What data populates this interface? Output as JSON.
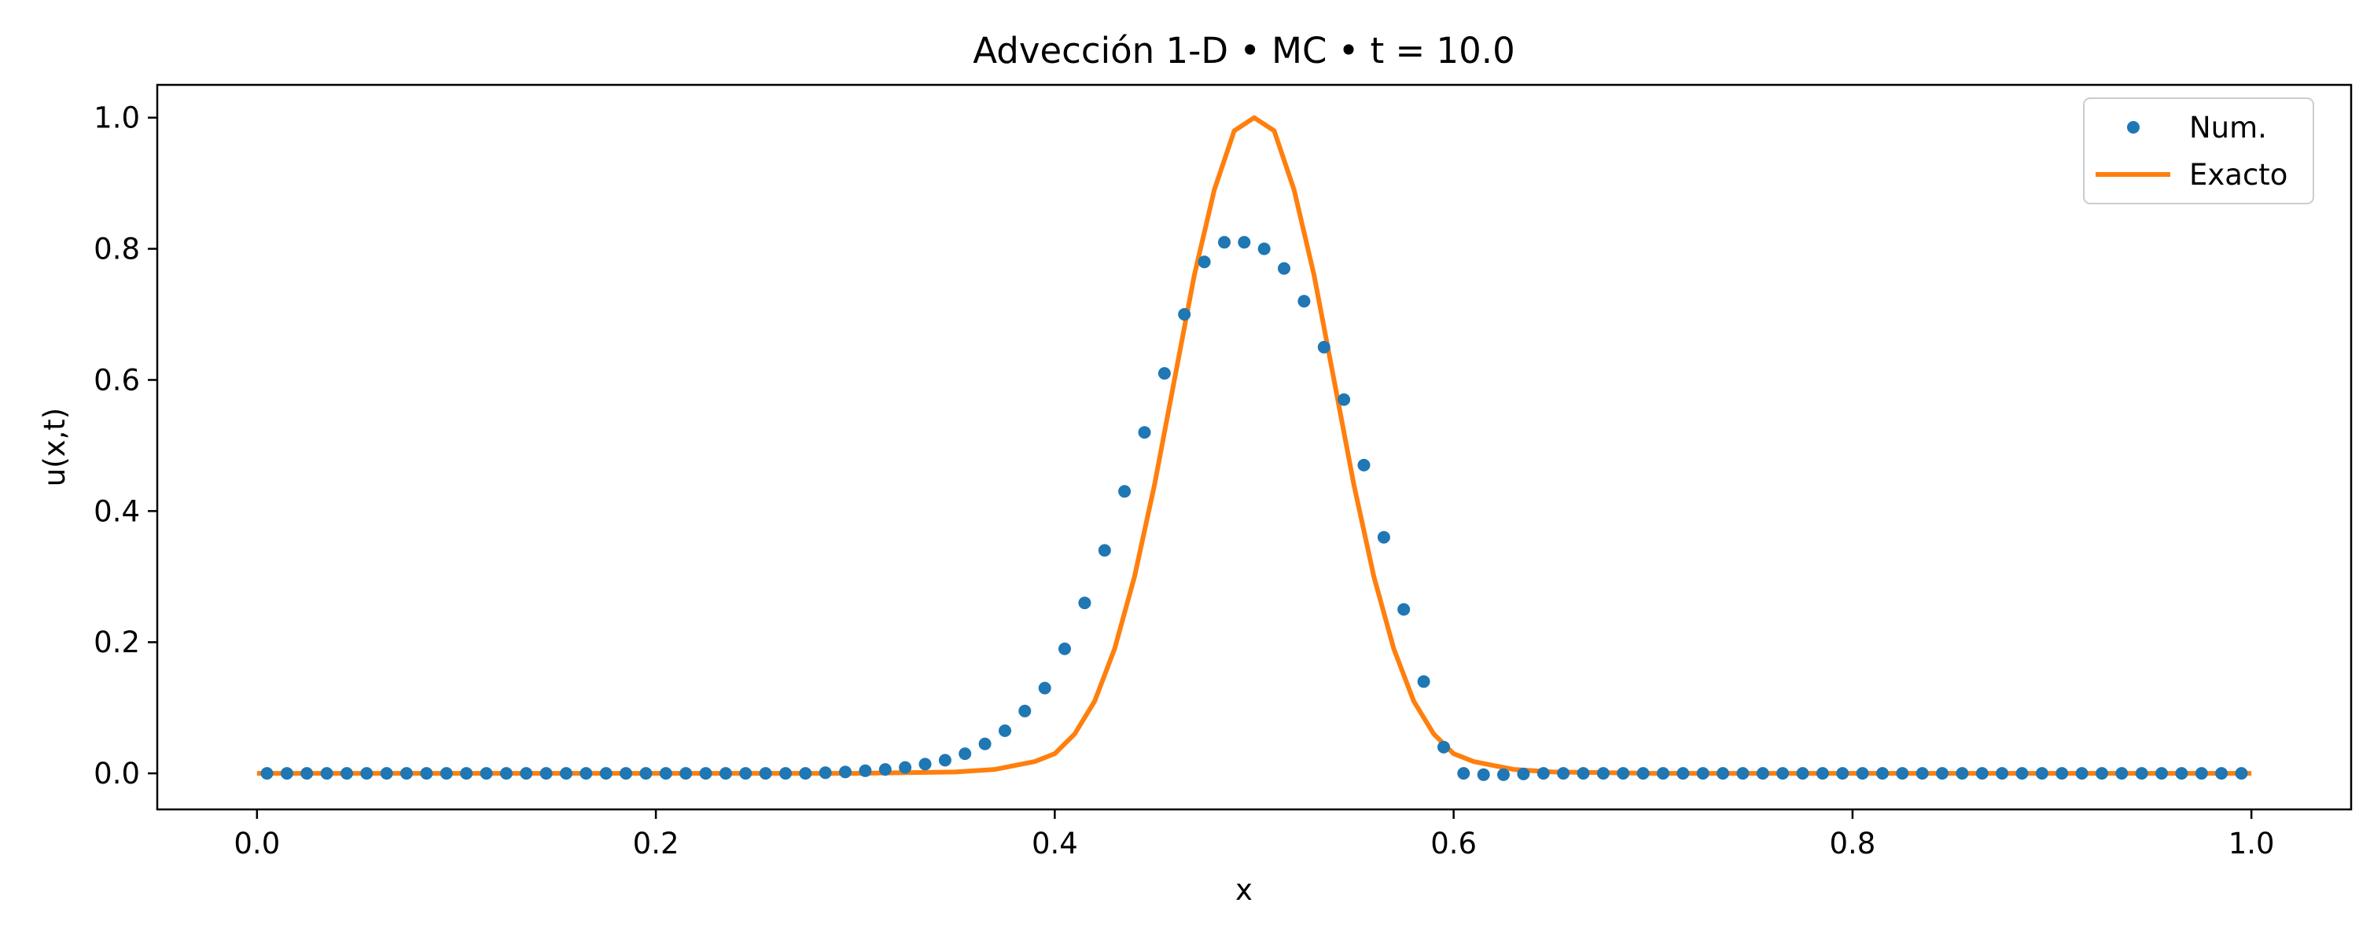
{
  "chart_data": {
    "type": "line",
    "title": "Advección 1-D • MC • t = 10.0",
    "xlabel": "x",
    "ylabel": "u(x,t)",
    "xlim": [
      -0.05,
      1.05
    ],
    "ylim": [
      -0.055,
      1.05
    ],
    "x_ticks": [
      "0.0",
      "0.2",
      "0.4",
      "0.6",
      "0.8",
      "1.0"
    ],
    "y_ticks": [
      "0.0",
      "0.2",
      "0.4",
      "0.6",
      "0.8",
      "1.0"
    ],
    "grid": false,
    "legend_position": "top-right",
    "series": [
      {
        "name": "Num.",
        "kind": "markers",
        "color": "#1f77b4",
        "x": [
          0.005,
          0.015,
          0.025,
          0.035,
          0.045,
          0.055,
          0.065,
          0.075,
          0.085,
          0.095,
          0.105,
          0.115,
          0.125,
          0.135,
          0.145,
          0.155,
          0.165,
          0.175,
          0.185,
          0.195,
          0.205,
          0.215,
          0.225,
          0.235,
          0.245,
          0.255,
          0.265,
          0.275,
          0.285,
          0.295,
          0.305,
          0.315,
          0.325,
          0.335,
          0.345,
          0.355,
          0.365,
          0.375,
          0.385,
          0.395,
          0.405,
          0.415,
          0.425,
          0.435,
          0.445,
          0.455,
          0.465,
          0.475,
          0.485,
          0.495,
          0.505,
          0.515,
          0.525,
          0.535,
          0.545,
          0.555,
          0.565,
          0.575,
          0.585,
          0.595,
          0.605,
          0.615,
          0.625,
          0.635,
          0.645,
          0.655,
          0.665,
          0.675,
          0.685,
          0.695,
          0.705,
          0.715,
          0.725,
          0.735,
          0.745,
          0.755,
          0.765,
          0.775,
          0.785,
          0.795,
          0.805,
          0.815,
          0.825,
          0.835,
          0.845,
          0.855,
          0.865,
          0.875,
          0.885,
          0.895,
          0.905,
          0.915,
          0.925,
          0.935,
          0.945,
          0.955,
          0.965,
          0.975,
          0.985,
          0.995
        ],
        "y": [
          0,
          0,
          0,
          0,
          0,
          0,
          0,
          0,
          0,
          0,
          0,
          0,
          0,
          0,
          0,
          0,
          0,
          0,
          0,
          0,
          0,
          0,
          0,
          0,
          0,
          0,
          0,
          0,
          0.001,
          0.002,
          0.004,
          0.006,
          0.009,
          0.014,
          0.02,
          0.03,
          0.045,
          0.065,
          0.095,
          0.13,
          0.19,
          0.26,
          0.34,
          0.43,
          0.52,
          0.61,
          0.7,
          0.78,
          0.81,
          0.81,
          0.8,
          0.77,
          0.72,
          0.65,
          0.57,
          0.47,
          0.36,
          0.25,
          0.14,
          0.04,
          0,
          -0.002,
          -0.002,
          -0.001,
          0,
          0,
          0,
          0,
          0,
          0,
          0,
          0,
          0,
          0,
          0,
          0,
          0,
          0,
          0,
          0,
          0,
          0,
          0,
          0,
          0,
          0,
          0,
          0,
          0,
          0,
          0,
          0,
          0,
          0,
          0,
          0,
          0,
          0,
          0,
          0
        ]
      },
      {
        "name": "Exacto",
        "kind": "line",
        "color": "#ff7f0e",
        "x": [
          0.0,
          0.3,
          0.35,
          0.37,
          0.39,
          0.4,
          0.41,
          0.42,
          0.43,
          0.44,
          0.45,
          0.46,
          0.47,
          0.48,
          0.49,
          0.5,
          0.51,
          0.52,
          0.53,
          0.54,
          0.55,
          0.56,
          0.57,
          0.58,
          0.59,
          0.6,
          0.61,
          0.63,
          0.65,
          0.7,
          1.0
        ],
        "y": [
          0,
          0,
          0.002,
          0.006,
          0.018,
          0.03,
          0.06,
          0.11,
          0.19,
          0.3,
          0.44,
          0.6,
          0.76,
          0.89,
          0.98,
          1.0,
          0.98,
          0.89,
          0.76,
          0.6,
          0.44,
          0.3,
          0.19,
          0.11,
          0.06,
          0.03,
          0.018,
          0.006,
          0.002,
          0,
          0
        ]
      }
    ]
  }
}
